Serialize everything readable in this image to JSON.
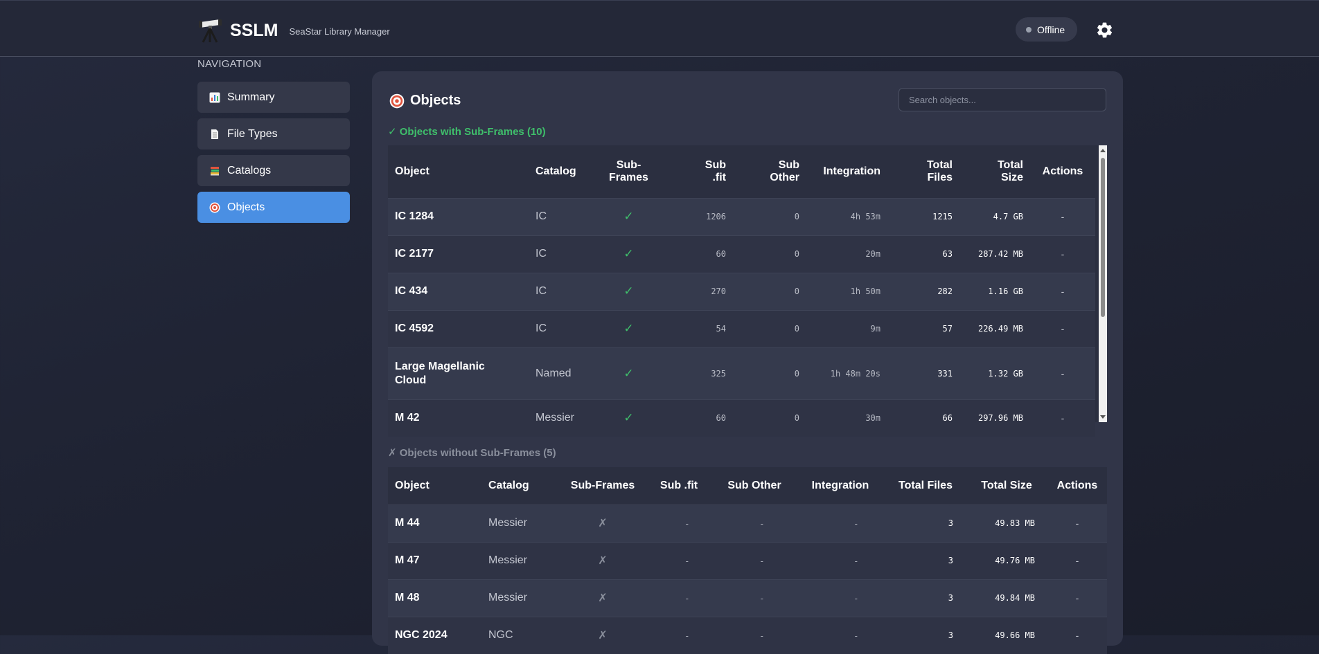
{
  "header": {
    "app_name": "SSLM",
    "app_subtitle": "SeaStar Library Manager",
    "status": "Offline",
    "logo_icon": "telescope-icon",
    "settings_icon": "gear-icon"
  },
  "sidebar": {
    "title": "NAVIGATION",
    "items": [
      {
        "label": "Summary",
        "icon": "chart-icon"
      },
      {
        "label": "File Types",
        "icon": "document-icon"
      },
      {
        "label": "Catalogs",
        "icon": "books-icon"
      },
      {
        "label": "Objects",
        "icon": "target-icon",
        "active": true
      }
    ]
  },
  "main": {
    "title": "Objects",
    "search_placeholder": "Search objects...",
    "with_subframes": {
      "heading": "✓ Objects with Sub-Frames (10)",
      "columns": [
        "Object",
        "Catalog",
        "Sub-Frames",
        "Sub .fit",
        "Sub Other",
        "Integration",
        "Total Files",
        "Total Size",
        "Actions"
      ],
      "rows": [
        {
          "object": "IC 1284",
          "catalog": "IC",
          "subframes": "✓",
          "sub_fit": "1206",
          "sub_other": "0",
          "integration": "4h 53m",
          "total_files": "1215",
          "total_size": "4.7 GB",
          "actions": "-"
        },
        {
          "object": "IC 2177",
          "catalog": "IC",
          "subframes": "✓",
          "sub_fit": "60",
          "sub_other": "0",
          "integration": "20m",
          "total_files": "63",
          "total_size": "287.42 MB",
          "actions": "-"
        },
        {
          "object": "IC 434",
          "catalog": "IC",
          "subframes": "✓",
          "sub_fit": "270",
          "sub_other": "0",
          "integration": "1h 50m",
          "total_files": "282",
          "total_size": "1.16 GB",
          "actions": "-"
        },
        {
          "object": "IC 4592",
          "catalog": "IC",
          "subframes": "✓",
          "sub_fit": "54",
          "sub_other": "0",
          "integration": "9m",
          "total_files": "57",
          "total_size": "226.49 MB",
          "actions": "-"
        },
        {
          "object": "Large Magellanic Cloud",
          "catalog": "Named",
          "subframes": "✓",
          "sub_fit": "325",
          "sub_other": "0",
          "integration": "1h 48m 20s",
          "total_files": "331",
          "total_size": "1.32 GB",
          "actions": "-"
        },
        {
          "object": "M 42",
          "catalog": "Messier",
          "subframes": "✓",
          "sub_fit": "60",
          "sub_other": "0",
          "integration": "30m",
          "total_files": "66",
          "total_size": "297.96 MB",
          "actions": "-"
        }
      ]
    },
    "without_subframes": {
      "heading": "✗ Objects without Sub-Frames (5)",
      "columns": [
        "Object",
        "Catalog",
        "Sub-Frames",
        "Sub .fit",
        "Sub Other",
        "Integration",
        "Total Files",
        "Total Size",
        "Actions"
      ],
      "rows": [
        {
          "object": "M 44",
          "catalog": "Messier",
          "subframes": "✗",
          "sub_fit": "-",
          "sub_other": "-",
          "integration": "-",
          "total_files": "3",
          "total_size": "49.83 MB",
          "actions": "-"
        },
        {
          "object": "M 47",
          "catalog": "Messier",
          "subframes": "✗",
          "sub_fit": "-",
          "sub_other": "-",
          "integration": "-",
          "total_files": "3",
          "total_size": "49.76 MB",
          "actions": "-"
        },
        {
          "object": "M 48",
          "catalog": "Messier",
          "subframes": "✗",
          "sub_fit": "-",
          "sub_other": "-",
          "integration": "-",
          "total_files": "3",
          "total_size": "49.84 MB",
          "actions": "-"
        },
        {
          "object": "NGC 2024",
          "catalog": "NGC",
          "subframes": "✗",
          "sub_fit": "-",
          "sub_other": "-",
          "integration": "-",
          "total_files": "3",
          "total_size": "49.66 MB",
          "actions": "-"
        }
      ]
    }
  },
  "colors": {
    "accent": "#4a8fe3",
    "success": "#3fbf6b",
    "muted": "#8a8f9c",
    "panel": "#313548",
    "background": "#1f2333"
  }
}
